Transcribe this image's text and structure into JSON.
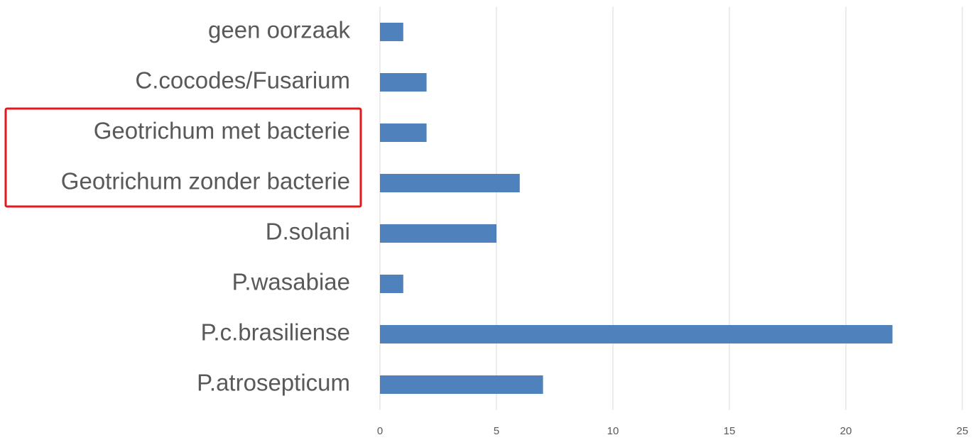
{
  "chart_data": {
    "type": "bar",
    "orientation": "horizontal",
    "categories": [
      "geen oorzaak",
      "C.cocodes/Fusarium",
      "Geotrichum met bacterie",
      "Geotrichum zonder bacterie",
      "D.solani",
      "P.wasabiae",
      "P.c.brasiliense",
      "P.atrosepticum"
    ],
    "values": [
      1,
      2,
      2,
      6,
      5,
      1,
      22,
      7
    ],
    "color": "#4f81bd",
    "xlim": [
      0,
      25
    ],
    "xticks": [
      0,
      5,
      10,
      15,
      20,
      25
    ],
    "grid": true
  }
}
